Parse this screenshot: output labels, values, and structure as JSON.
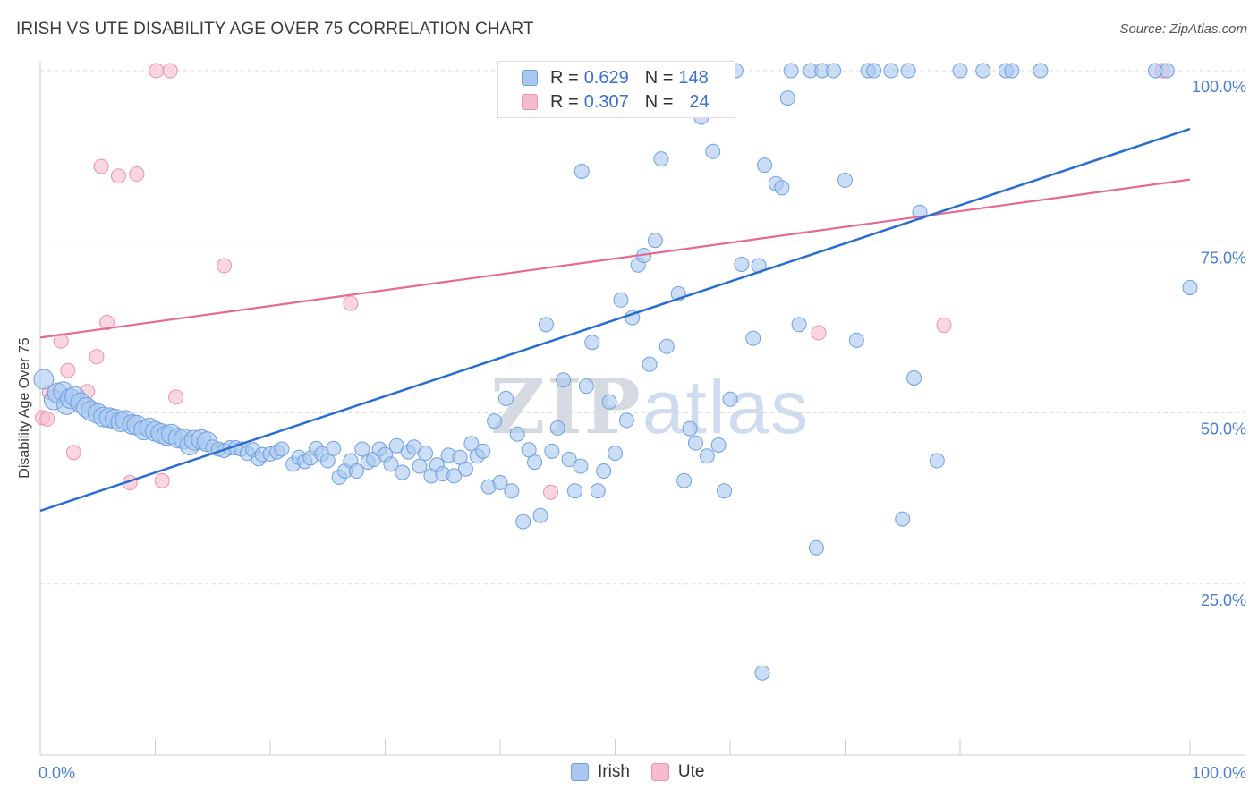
{
  "title": "IRISH VS UTE DISABILITY AGE OVER 75 CORRELATION CHART",
  "source": "Source: ZipAtlas.com",
  "watermark": {
    "zip": "ZIP",
    "atlas": "atlas"
  },
  "legend_top": {
    "irish": {
      "r_label": "R = ",
      "r_value": "0.629",
      "n_label": "N = ",
      "n_value": "148"
    },
    "ute": {
      "r_label": "R = ",
      "r_value": "0.307",
      "n_label": "N = ",
      "n_value": "24"
    }
  },
  "legend_bottom": {
    "irish": "Irish",
    "ute": "Ute"
  },
  "colors": {
    "irish_fill": "#a9c8f0",
    "irish_stroke": "#6f9fe0",
    "irish_line": "#2a6dd0",
    "ute_fill": "#f6bccb",
    "ute_stroke": "#ee90ab",
    "ute_line": "#e46a93",
    "tick_text": "#4a7fd0",
    "grid": "#dddddd"
  },
  "chart_data": {
    "type": "scatter",
    "title": "IRISH VS UTE DISABILITY AGE OVER 75 CORRELATION CHART",
    "xlabel": "",
    "ylabel": "Disability Age Over 75",
    "xlim": [
      0,
      100
    ],
    "ylim": [
      0,
      100
    ],
    "x_tick_labels": [
      "0.0%",
      "100.0%"
    ],
    "y_ticks": [
      25,
      50,
      75,
      100
    ],
    "y_tick_labels": [
      "25.0%",
      "50.0%",
      "75.0%",
      "100.0%"
    ],
    "grid": true,
    "legend": "bottom-center",
    "series": [
      {
        "name": "Irish",
        "R": 0.629,
        "N": 148,
        "trend": {
          "x": [
            0,
            100
          ],
          "y": [
            35.7,
            91.5
          ]
        },
        "points": [
          [
            0.3,
            54.9
          ],
          [
            1.2,
            51.9
          ],
          [
            1.5,
            52.9
          ],
          [
            2.0,
            53.1
          ],
          [
            2.3,
            51.2
          ],
          [
            2.6,
            52.1
          ],
          [
            3.0,
            52.4
          ],
          [
            3.5,
            51.5
          ],
          [
            4.0,
            50.8
          ],
          [
            4.4,
            50.3
          ],
          [
            5.0,
            49.9
          ],
          [
            5.5,
            49.4
          ],
          [
            6.0,
            49.3
          ],
          [
            6.5,
            49.1
          ],
          [
            7.0,
            48.7
          ],
          [
            7.4,
            48.9
          ],
          [
            8.0,
            48.3
          ],
          [
            8.4,
            48.2
          ],
          [
            9.0,
            47.5
          ],
          [
            9.5,
            47.8
          ],
          [
            10.0,
            47.3
          ],
          [
            10.5,
            47.0
          ],
          [
            11.0,
            46.7
          ],
          [
            11.4,
            46.9
          ],
          [
            12.0,
            46.3
          ],
          [
            12.5,
            46.2
          ],
          [
            13.0,
            45.3
          ],
          [
            13.4,
            46.0
          ],
          [
            14.0,
            46.1
          ],
          [
            14.5,
            45.8
          ],
          [
            15.0,
            45.0
          ],
          [
            15.5,
            44.7
          ],
          [
            16.0,
            44.5
          ],
          [
            16.5,
            44.9
          ],
          [
            17.0,
            44.9
          ],
          [
            17.5,
            44.7
          ],
          [
            18.0,
            44.1
          ],
          [
            18.5,
            44.6
          ],
          [
            19.0,
            43.3
          ],
          [
            19.3,
            43.9
          ],
          [
            20.0,
            44.0
          ],
          [
            20.6,
            44.3
          ],
          [
            21.0,
            44.7
          ],
          [
            22.0,
            42.5
          ],
          [
            22.5,
            43.5
          ],
          [
            23.0,
            42.9
          ],
          [
            23.5,
            43.4
          ],
          [
            24.0,
            44.8
          ],
          [
            24.5,
            44.0
          ],
          [
            25.0,
            43.0
          ],
          [
            25.5,
            44.8
          ],
          [
            26.0,
            40.6
          ],
          [
            26.5,
            41.5
          ],
          [
            27.0,
            43.0
          ],
          [
            27.5,
            41.5
          ],
          [
            28.0,
            44.7
          ],
          [
            28.5,
            42.8
          ],
          [
            29.0,
            43.2
          ],
          [
            29.5,
            44.7
          ],
          [
            30.0,
            43.9
          ],
          [
            30.5,
            42.5
          ],
          [
            31.0,
            45.2
          ],
          [
            31.5,
            41.3
          ],
          [
            32.0,
            44.3
          ],
          [
            32.5,
            45.0
          ],
          [
            33.0,
            42.2
          ],
          [
            33.5,
            44.1
          ],
          [
            34.0,
            40.8
          ],
          [
            34.5,
            42.4
          ],
          [
            35.0,
            41.1
          ],
          [
            35.5,
            43.8
          ],
          [
            36.0,
            40.8
          ],
          [
            36.5,
            43.5
          ],
          [
            37.0,
            41.8
          ],
          [
            37.5,
            45.5
          ],
          [
            38.0,
            43.7
          ],
          [
            38.5,
            44.4
          ],
          [
            39.0,
            39.2
          ],
          [
            39.5,
            48.8
          ],
          [
            40.0,
            39.8
          ],
          [
            40.5,
            52.1
          ],
          [
            41.0,
            38.6
          ],
          [
            41.5,
            46.9
          ],
          [
            42.0,
            34.1
          ],
          [
            42.5,
            44.6
          ],
          [
            43.0,
            42.8
          ],
          [
            43.5,
            35.0
          ],
          [
            44.0,
            62.9
          ],
          [
            44.5,
            44.4
          ],
          [
            45.0,
            47.8
          ],
          [
            45.5,
            54.8
          ],
          [
            46.0,
            43.2
          ],
          [
            46.5,
            38.6
          ],
          [
            47.0,
            42.2
          ],
          [
            47.5,
            53.9
          ],
          [
            48.0,
            60.3
          ],
          [
            48.5,
            38.6
          ],
          [
            49.0,
            41.5
          ],
          [
            49.5,
            51.6
          ],
          [
            50.0,
            44.1
          ],
          [
            50.5,
            66.5
          ],
          [
            51.0,
            48.9
          ],
          [
            51.5,
            63.9
          ],
          [
            52.0,
            71.6
          ],
          [
            52.5,
            73.0
          ],
          [
            53.0,
            57.1
          ],
          [
            53.5,
            75.2
          ],
          [
            54.0,
            87.1
          ],
          [
            54.5,
            59.7
          ],
          [
            55.0,
            100.0
          ],
          [
            55.5,
            67.4
          ],
          [
            56.0,
            40.1
          ],
          [
            56.5,
            47.7
          ],
          [
            57.0,
            45.6
          ],
          [
            57.5,
            93.2
          ],
          [
            58.0,
            43.7
          ],
          [
            58.5,
            88.2
          ],
          [
            59.0,
            45.3
          ],
          [
            59.5,
            38.6
          ],
          [
            60.5,
            100.0
          ],
          [
            61.0,
            71.7
          ],
          [
            62.0,
            60.9
          ],
          [
            62.5,
            71.5
          ],
          [
            63.0,
            86.2
          ],
          [
            64.0,
            83.5
          ],
          [
            64.5,
            82.9
          ],
          [
            65.0,
            96.0
          ],
          [
            65.3,
            100.0
          ],
          [
            66.0,
            62.9
          ],
          [
            67.0,
            100.0
          ],
          [
            67.5,
            30.3
          ],
          [
            68.0,
            100.0
          ],
          [
            69.0,
            100.0
          ],
          [
            70.0,
            84.0
          ],
          [
            71.0,
            60.6
          ],
          [
            72.0,
            100.0
          ],
          [
            72.5,
            100.0
          ],
          [
            74.0,
            100.0
          ],
          [
            75.0,
            34.5
          ],
          [
            75.5,
            100.0
          ],
          [
            76.0,
            55.1
          ],
          [
            76.5,
            79.3
          ],
          [
            78.0,
            43.0
          ],
          [
            80.0,
            100.0
          ],
          [
            82.0,
            100.0
          ],
          [
            84.0,
            100.0
          ],
          [
            84.5,
            100.0
          ],
          [
            87.0,
            100.0
          ],
          [
            97.0,
            100.0
          ],
          [
            98.0,
            100.0
          ],
          [
            100.0,
            68.3
          ],
          [
            62.8,
            12.0
          ],
          [
            47.1,
            85.3
          ],
          [
            60.0,
            52.0
          ]
        ]
      },
      {
        "name": "Ute",
        "R": 0.307,
        "N": 24,
        "trend": {
          "x": [
            0,
            100
          ],
          "y": [
            61.0,
            84.1
          ]
        },
        "points": [
          [
            0.2,
            49.3
          ],
          [
            0.6,
            49.1
          ],
          [
            1.8,
            60.5
          ],
          [
            2.4,
            56.2
          ],
          [
            2.9,
            44.2
          ],
          [
            4.1,
            53.1
          ],
          [
            4.9,
            58.2
          ],
          [
            5.3,
            86.0
          ],
          [
            5.8,
            63.2
          ],
          [
            6.8,
            84.6
          ],
          [
            7.8,
            39.8
          ],
          [
            8.4,
            84.9
          ],
          [
            10.1,
            100.0
          ],
          [
            10.6,
            40.1
          ],
          [
            11.3,
            100.0
          ],
          [
            11.8,
            52.3
          ],
          [
            16.0,
            71.5
          ],
          [
            27.0,
            66.0
          ],
          [
            44.4,
            38.4
          ],
          [
            57.4,
            100.0
          ],
          [
            67.7,
            61.7
          ],
          [
            78.6,
            62.8
          ],
          [
            97.6,
            100.0
          ],
          [
            0.8,
            53.0
          ]
        ]
      }
    ]
  }
}
